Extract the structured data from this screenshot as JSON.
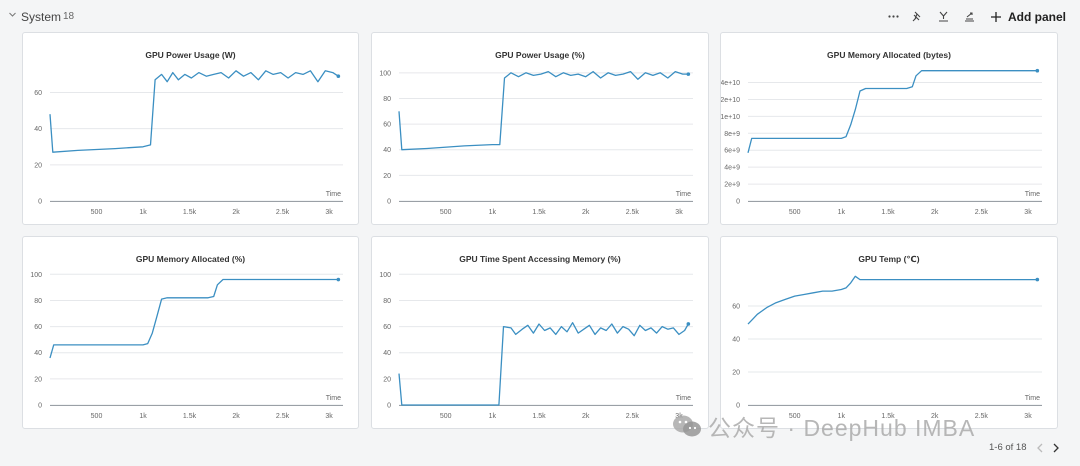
{
  "section": {
    "title": "System",
    "count": "18"
  },
  "toolbar": {
    "icons": [
      "more-icon",
      "pin-icon",
      "filter-icon",
      "sort-icon"
    ],
    "add_panel_label": "Add panel"
  },
  "pagination": {
    "label": "1-6 of 18"
  },
  "watermark": {
    "text": "公众号 · DeepHub IMBA"
  },
  "colors": {
    "line": "#3b8fc2",
    "grid": "#e6e8eb",
    "axis": "#9aa0a6"
  },
  "chart_data": [
    {
      "type": "line",
      "title": "GPU Power Usage (W)",
      "xlabel": "Time",
      "xlim": [
        0,
        3150
      ],
      "ylim": [
        0,
        73
      ],
      "xticks": [
        500,
        1000,
        1500,
        2000,
        2500,
        3000
      ],
      "xtick_labels": [
        "500",
        "1k",
        "1.5k",
        "2k",
        "2.5k",
        "3k"
      ],
      "yticks": [
        0,
        20,
        40,
        60
      ],
      "ytick_labels": [
        "0",
        "20",
        "40",
        "60"
      ],
      "x": [
        0,
        30,
        300,
        700,
        1000,
        1080,
        1130,
        1200,
        1260,
        1320,
        1380,
        1450,
        1520,
        1600,
        1680,
        1760,
        1840,
        1920,
        2000,
        2080,
        2160,
        2240,
        2320,
        2400,
        2480,
        2560,
        2640,
        2720,
        2800,
        2880,
        2960,
        3040,
        3100
      ],
      "y": [
        48,
        27,
        28,
        29,
        30,
        31,
        67,
        70,
        66,
        71,
        67,
        70,
        68,
        71,
        69,
        70,
        71,
        68,
        72,
        69,
        71,
        67,
        72,
        70,
        71,
        68,
        71,
        70,
        72,
        66,
        72,
        71,
        69
      ]
    },
    {
      "type": "line",
      "title": "GPU Power Usage (%)",
      "xlabel": "Time",
      "xlim": [
        0,
        3150
      ],
      "ylim": [
        0,
        103
      ],
      "xticks": [
        500,
        1000,
        1500,
        2000,
        2500,
        3000
      ],
      "xtick_labels": [
        "500",
        "1k",
        "1.5k",
        "2k",
        "2.5k",
        "3k"
      ],
      "yticks": [
        0,
        20,
        40,
        60,
        80,
        100
      ],
      "ytick_labels": [
        "0",
        "20",
        "40",
        "60",
        "80",
        "100"
      ],
      "x": [
        0,
        30,
        300,
        700,
        1000,
        1080,
        1130,
        1200,
        1280,
        1360,
        1440,
        1520,
        1600,
        1680,
        1760,
        1840,
        1920,
        2000,
        2080,
        2160,
        2240,
        2320,
        2400,
        2480,
        2560,
        2640,
        2720,
        2800,
        2880,
        2960,
        3040,
        3100
      ],
      "y": [
        70,
        40,
        41,
        43,
        44,
        44,
        96,
        100,
        97,
        100,
        98,
        99,
        101,
        97,
        100,
        98,
        99,
        97,
        101,
        96,
        100,
        98,
        99,
        101,
        95,
        100,
        98,
        100,
        96,
        101,
        99,
        99
      ]
    },
    {
      "type": "line",
      "title": "GPU Memory Allocated (bytes)",
      "xlabel": "Time",
      "xlim": [
        0,
        3150
      ],
      "ylim": [
        0,
        15600000000
      ],
      "xticks": [
        500,
        1000,
        1500,
        2000,
        2500,
        3000
      ],
      "xtick_labels": [
        "500",
        "1k",
        "1.5k",
        "2k",
        "2.5k",
        "3k"
      ],
      "yticks": [
        0,
        2000000000,
        4000000000,
        6000000000,
        8000000000,
        10000000000,
        12000000000,
        14000000000
      ],
      "ytick_labels": [
        "0",
        "2e+9",
        "4e+9",
        "6e+9",
        "8e+9",
        "1e+10",
        "1.2e+10",
        "1.4e+10"
      ],
      "x": [
        0,
        40,
        1000,
        1050,
        1100,
        1150,
        1200,
        1260,
        1700,
        1760,
        1800,
        1860,
        2400,
        3100
      ],
      "y": [
        5700000000,
        7400000000,
        7400000000,
        7600000000,
        9000000000,
        10800000000,
        13000000000,
        13300000000,
        13300000000,
        13500000000,
        14800000000,
        15400000000,
        15400000000,
        15400000000
      ]
    },
    {
      "type": "line",
      "title": "GPU Memory Allocated (%)",
      "xlabel": "Time",
      "xlim": [
        0,
        3150
      ],
      "ylim": [
        0,
        101
      ],
      "xticks": [
        500,
        1000,
        1500,
        2000,
        2500,
        3000
      ],
      "xtick_labels": [
        "500",
        "1k",
        "1.5k",
        "2k",
        "2.5k",
        "3k"
      ],
      "yticks": [
        0,
        20,
        40,
        60,
        80,
        100
      ],
      "ytick_labels": [
        "0",
        "20",
        "40",
        "60",
        "80",
        "100"
      ],
      "x": [
        0,
        40,
        1000,
        1050,
        1100,
        1150,
        1200,
        1260,
        1700,
        1760,
        1800,
        1860,
        2400,
        3100
      ],
      "y": [
        36,
        46,
        46,
        47,
        55,
        68,
        81,
        82,
        82,
        83,
        92,
        96,
        96,
        96
      ]
    },
    {
      "type": "line",
      "title": "GPU Time Spent Accessing Memory (%)",
      "xlabel": "Time",
      "xlim": [
        0,
        3150
      ],
      "ylim": [
        0,
        101
      ],
      "xticks": [
        500,
        1000,
        1500,
        2000,
        2500,
        3000
      ],
      "xtick_labels": [
        "500",
        "1k",
        "1.5k",
        "2k",
        "2.5k",
        "3k"
      ],
      "yticks": [
        0,
        20,
        40,
        60,
        80,
        100
      ],
      "ytick_labels": [
        "0",
        "20",
        "40",
        "60",
        "80",
        "100"
      ],
      "x": [
        0,
        30,
        300,
        700,
        1000,
        1070,
        1120,
        1200,
        1250,
        1320,
        1380,
        1440,
        1500,
        1560,
        1620,
        1680,
        1740,
        1800,
        1860,
        1920,
        1980,
        2040,
        2100,
        2160,
        2220,
        2280,
        2340,
        2400,
        2460,
        2520,
        2580,
        2640,
        2700,
        2760,
        2820,
        2880,
        2940,
        3000,
        3060,
        3100
      ],
      "y": [
        24,
        0,
        0,
        0,
        0,
        0,
        60,
        59,
        54,
        58,
        61,
        55,
        62,
        57,
        59,
        54,
        60,
        56,
        63,
        55,
        58,
        61,
        54,
        59,
        57,
        62,
        55,
        60,
        58,
        53,
        61,
        57,
        59,
        55,
        60,
        58,
        59,
        54,
        57,
        62
      ]
    },
    {
      "type": "line",
      "title": "GPU Temp (℃)",
      "xlabel": "Time",
      "xlim": [
        0,
        3150
      ],
      "ylim": [
        0,
        80
      ],
      "xticks": [
        500,
        1000,
        1500,
        2000,
        2500,
        3000
      ],
      "xtick_labels": [
        "500",
        "1k",
        "1.5k",
        "2k",
        "2.5k",
        "3k"
      ],
      "yticks": [
        0,
        20,
        40,
        60
      ],
      "ytick_labels": [
        "0",
        "20",
        "40",
        "60"
      ],
      "x": [
        0,
        50,
        100,
        200,
        300,
        400,
        500,
        600,
        700,
        800,
        900,
        1000,
        1050,
        1100,
        1150,
        1200,
        1300,
        1500,
        1800,
        2100,
        2400,
        2700,
        3000,
        3100
      ],
      "y": [
        49,
        52,
        55,
        59,
        62,
        64,
        66,
        67,
        68,
        69,
        69,
        70,
        71,
        74,
        78,
        76,
        76,
        76,
        76,
        76,
        76,
        76,
        76,
        76
      ]
    }
  ]
}
